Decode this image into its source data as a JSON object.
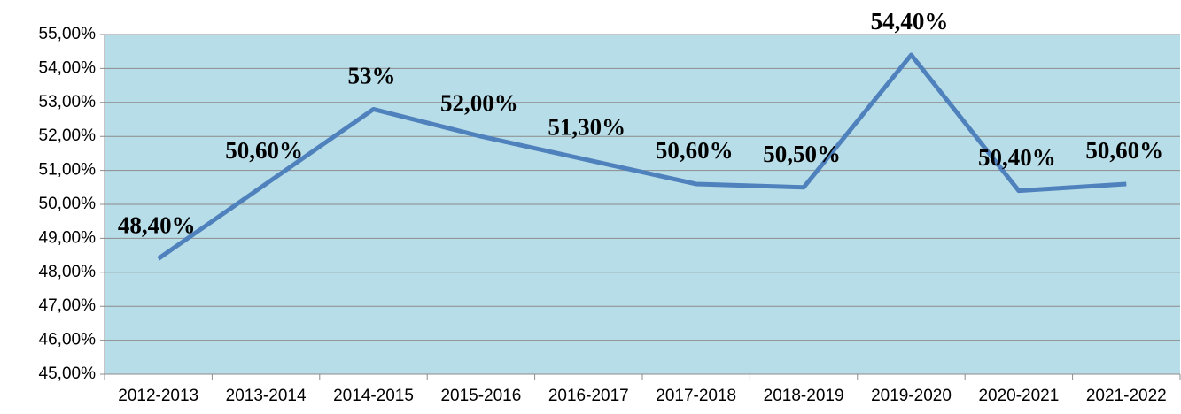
{
  "chart_data": {
    "type": "line",
    "categories": [
      "2012-2013",
      "2013-2014",
      "2014-2015",
      "2015-2016",
      "2016-2017",
      "2017-2018",
      "2018-2019",
      "2019-2020",
      "2020-2021",
      "2021-2022"
    ],
    "series": [
      {
        "color": "#4f81bd",
        "values": [
          48.4,
          50.6,
          52.8,
          52.0,
          51.3,
          50.6,
          50.5,
          54.4,
          50.4,
          50.6
        ],
        "value_labels": [
          "48,40%",
          "50,60%",
          "53%",
          "52,00%",
          "51,30%",
          "50,60%",
          "50,50%",
          "54,40%",
          "50,40%",
          "50,60%"
        ]
      }
    ],
    "ylim": [
      45,
      55
    ],
    "yticks": [
      {
        "value": 45,
        "label": "45,00%"
      },
      {
        "value": 46,
        "label": "46,00%"
      },
      {
        "value": 47,
        "label": "47,00%"
      },
      {
        "value": 48,
        "label": "48,00%"
      },
      {
        "value": 49,
        "label": "49,00%"
      },
      {
        "value": 50,
        "label": "50,00%"
      },
      {
        "value": 51,
        "label": "51,00%"
      },
      {
        "value": 52,
        "label": "52,00%"
      },
      {
        "value": 53,
        "label": "53,00%"
      },
      {
        "value": 54,
        "label": "54,00%"
      },
      {
        "value": 55,
        "label": "55,00%"
      }
    ],
    "grid": true,
    "background": "#b7dde8"
  }
}
